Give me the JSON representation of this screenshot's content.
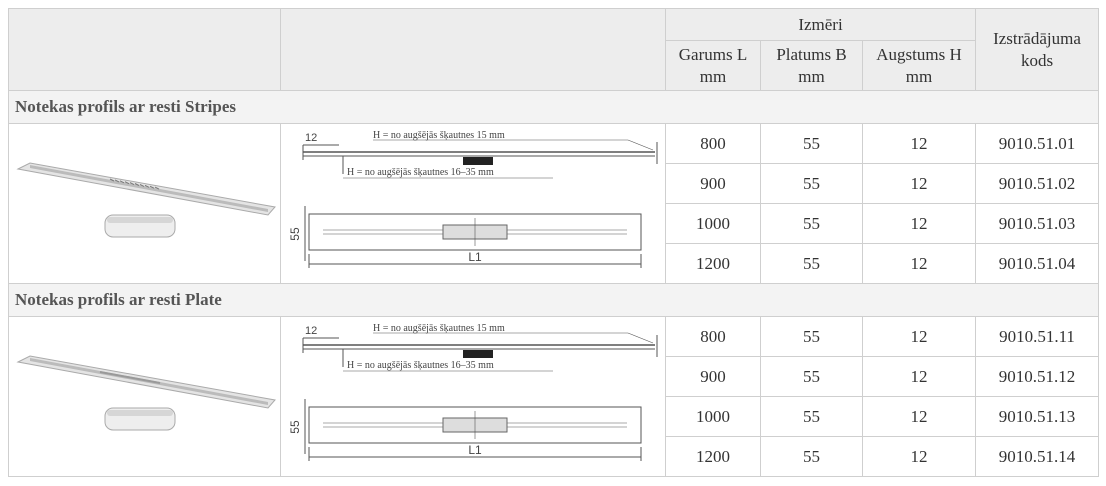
{
  "header": {
    "dimensions": "Izmēri",
    "columns": [
      {
        "label": "Garums L",
        "unit": "mm"
      },
      {
        "label": "Platums B",
        "unit": "mm"
      },
      {
        "label": "Augstums H",
        "unit": "mm"
      }
    ],
    "code": "Izstrādājuma kods"
  },
  "sections": [
    {
      "title": "Notekas profils ar resti Stripes",
      "diagram": {
        "dim_top": "12",
        "h_top": "H = no augšējās šķautnes 15 mm",
        "h_bottom": "H = no augšējās šķautnes 16–35 mm",
        "dim_side": "55",
        "dim_length": "L1"
      },
      "rows": [
        [
          800,
          55,
          12,
          "9010.51.01"
        ],
        [
          900,
          55,
          12,
          "9010.51.02"
        ],
        [
          1000,
          55,
          12,
          "9010.51.03"
        ],
        [
          1200,
          55,
          12,
          "9010.51.04"
        ]
      ]
    },
    {
      "title": "Notekas profils ar resti Plate",
      "diagram": {
        "dim_top": "12",
        "h_top": "H = no augšējās šķautnes 15 mm",
        "h_bottom": "H = no augšējās šķautnes 16–35 mm",
        "dim_side": "55",
        "dim_length": "L1"
      },
      "rows": [
        [
          800,
          55,
          12,
          "9010.51.11"
        ],
        [
          900,
          55,
          12,
          "9010.51.12"
        ],
        [
          1000,
          55,
          12,
          "9010.51.13"
        ],
        [
          1200,
          55,
          12,
          "9010.51.14"
        ]
      ]
    }
  ]
}
